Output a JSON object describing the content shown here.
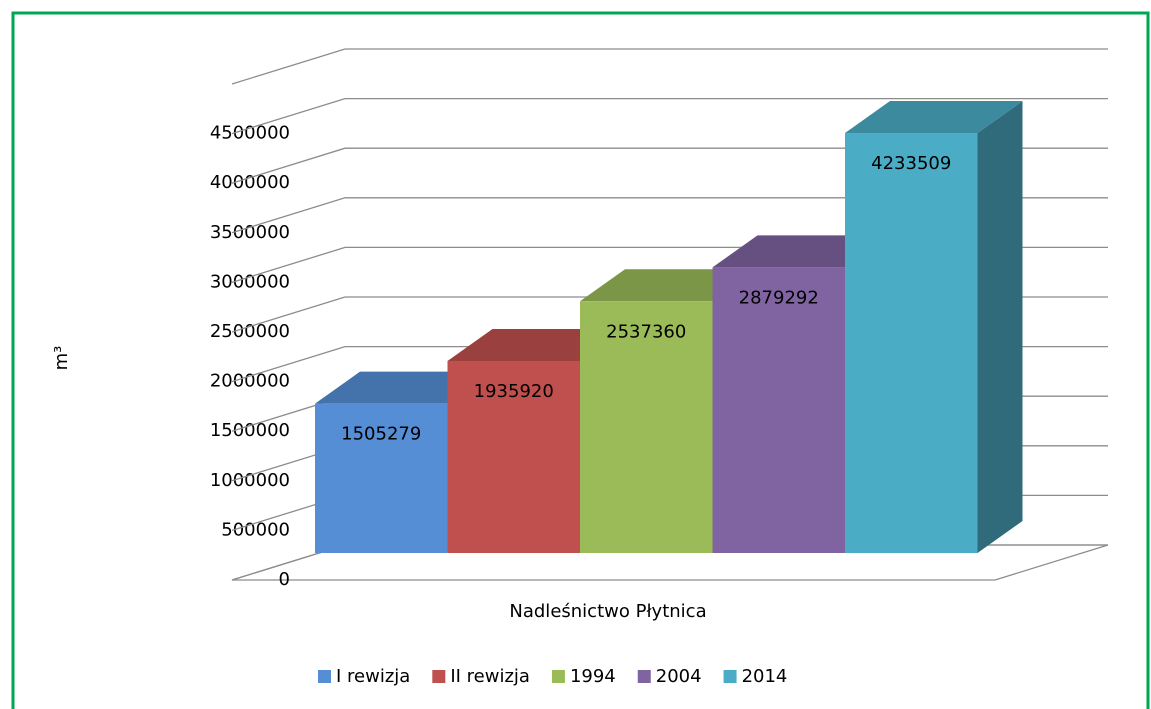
{
  "chart_data": {
    "type": "bar3d",
    "x_label": "Nadleśnictwo Płytnica",
    "y_label": "m³",
    "categories": [
      "Nadleśnictwo Płytnica"
    ],
    "series": [
      {
        "name": "I rewizja",
        "color": "#558ed5",
        "values": [
          1505279
        ]
      },
      {
        "name": "II rewizja",
        "color": "#c0504d",
        "values": [
          1935920
        ]
      },
      {
        "name": "1994",
        "color": "#9bbb59",
        "values": [
          2537360
        ]
      },
      {
        "name": "2004",
        "color": "#8064a2",
        "values": [
          2879292
        ]
      },
      {
        "name": "2014",
        "color": "#4bacc6",
        "values": [
          4233509
        ]
      }
    ],
    "ylim": [
      0,
      5000000
    ],
    "yticks": [
      0,
      500000,
      1000000,
      1500000,
      2000000,
      2500000,
      3000000,
      3500000,
      4000000,
      4500000
    ],
    "grid": true,
    "legend": "bottom"
  }
}
